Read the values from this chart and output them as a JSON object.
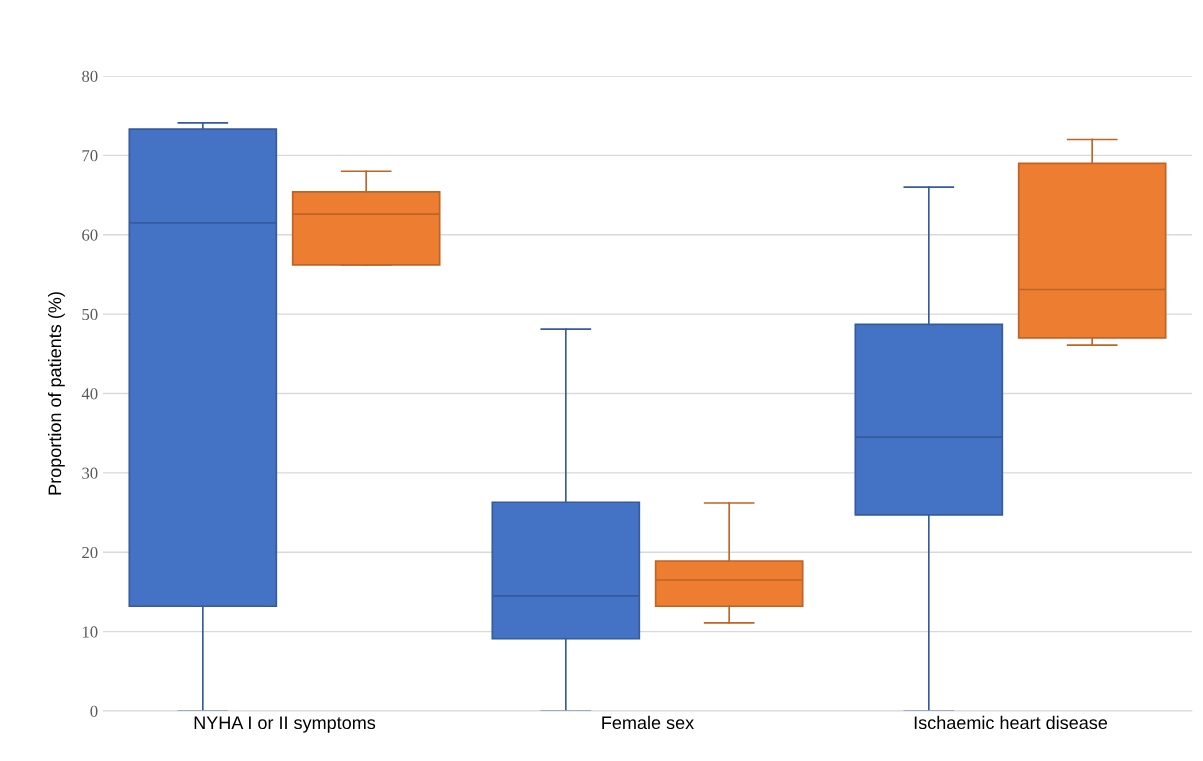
{
  "chart_data": {
    "type": "box",
    "ylabel": "Proportion of patients (%)",
    "categories": [
      "NYHA I or II symptoms",
      "Female sex",
      "Ischaemic heart disease"
    ],
    "series": [
      {
        "color": "#4472c4",
        "boxes": [
          {
            "low": 0,
            "q1": 13.2,
            "median": 61.5,
            "q3": 73.3,
            "high": 74.1
          },
          {
            "low": 0,
            "q1": 9.1,
            "median": 14.5,
            "q3": 26.3,
            "high": 48.1
          },
          {
            "low": 0,
            "q1": 24.7,
            "median": 34.5,
            "q3": 48.7,
            "high": 66.0
          }
        ]
      },
      {
        "color": "#ed7d31",
        "boxes": [
          {
            "low": 56.2,
            "q1": 56.2,
            "median": 62.6,
            "q3": 65.4,
            "high": 68.0
          },
          {
            "low": 11.1,
            "q1": 13.2,
            "median": 16.5,
            "q3": 18.9,
            "high": 26.2
          },
          {
            "low": 46.1,
            "q1": 47.0,
            "median": 53.1,
            "q3": 69.0,
            "high": 72.0
          }
        ]
      }
    ],
    "ylim": [
      0,
      80
    ],
    "yticks": [
      0,
      10,
      20,
      30,
      40,
      50,
      60,
      70,
      80
    ],
    "grid": "y"
  }
}
